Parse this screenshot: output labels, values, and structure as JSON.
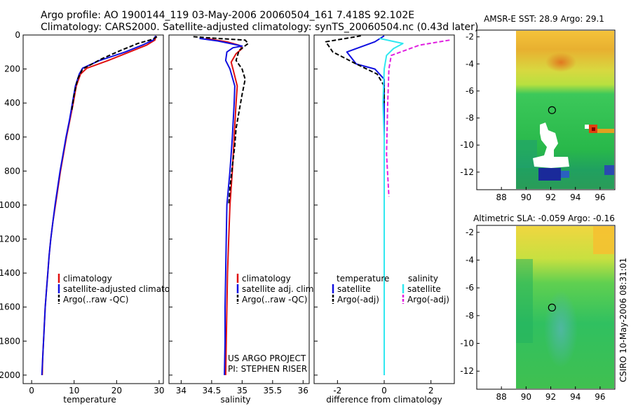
{
  "header": {
    "line1": "Argo profile: AO 1900144_119 03-May-2006 20060504_161 7.418S 92.102E",
    "line2": "Climatology: CARS2000. Satellite-adjusted climatology: synTS_20060504.nc (0.43d later)"
  },
  "side_stamp": "CSIRO 10-May-2006 08:31:01",
  "project": {
    "line1": "US ARGO PROJECT",
    "line2": "PI: STEPHEN RISER"
  },
  "colors": {
    "climatology": "#e01010",
    "satellite": "#1010e0",
    "argo": "#000000",
    "cyan": "#30e8f0",
    "magenta": "#e020e0"
  },
  "chart_data": [
    {
      "id": "temperature",
      "type": "line",
      "xlabel": "temperature",
      "ylabel": "",
      "xlim": [
        -2,
        31
      ],
      "ylim": [
        0,
        2050
      ],
      "xticks": [
        0,
        10,
        20,
        30
      ],
      "yticks": [
        0,
        200,
        400,
        600,
        800,
        1000,
        1200,
        1400,
        1600,
        1800,
        2000
      ],
      "legend": [
        "climatology",
        "satellite-adjusted climatology",
        "Argo(..raw -QC)"
      ],
      "series": [
        {
          "name": "climatology",
          "style": "solid",
          "color": "#e01010",
          "points": [
            [
              29.3,
              5
            ],
            [
              29,
              30
            ],
            [
              27,
              60
            ],
            [
              23,
              100
            ],
            [
              18,
              150
            ],
            [
              13,
              195
            ],
            [
              11.5,
              230
            ],
            [
              10.5,
              300
            ],
            [
              9.8,
              400
            ],
            [
              9,
              500
            ],
            [
              8.2,
              600
            ],
            [
              7.5,
              700
            ],
            [
              6.8,
              800
            ],
            [
              6.2,
              900
            ],
            [
              5.6,
              1000
            ],
            [
              5,
              1100
            ],
            [
              4.5,
              1200
            ],
            [
              4.1,
              1300
            ],
            [
              3.8,
              1400
            ],
            [
              3.5,
              1500
            ],
            [
              3.2,
              1600
            ],
            [
              3,
              1700
            ],
            [
              2.8,
              1800
            ],
            [
              2.6,
              1900
            ],
            [
              2.5,
              2000
            ]
          ]
        },
        {
          "name": "satellite-adjusted climatology",
          "style": "solid",
          "color": "#1010e0",
          "points": [
            [
              29.2,
              5
            ],
            [
              28.6,
              30
            ],
            [
              26,
              60
            ],
            [
              22,
              100
            ],
            [
              16,
              150
            ],
            [
              12,
              195
            ],
            [
              11.2,
              230
            ],
            [
              10.3,
              300
            ],
            [
              9.6,
              400
            ],
            [
              8.9,
              500
            ],
            [
              8.1,
              600
            ],
            [
              7.4,
              700
            ],
            [
              6.7,
              800
            ],
            [
              6.1,
              900
            ],
            [
              5.5,
              1000
            ],
            [
              5,
              1100
            ],
            [
              4.5,
              1200
            ],
            [
              4.1,
              1300
            ],
            [
              3.8,
              1400
            ],
            [
              3.5,
              1500
            ],
            [
              3.2,
              1600
            ],
            [
              3,
              1700
            ],
            [
              2.8,
              1800
            ],
            [
              2.6,
              1900
            ],
            [
              2.4,
              2000
            ]
          ]
        },
        {
          "name": "Argo(..raw -QC)",
          "style": "dashed",
          "color": "#000000",
          "points": [
            [
              29.5,
              10
            ],
            [
              28.5,
              25
            ],
            [
              25,
              50
            ],
            [
              21,
              90
            ],
            [
              16.5,
              140
            ],
            [
              12,
              200
            ],
            [
              10.8,
              260
            ],
            [
              10,
              350
            ],
            [
              9.4,
              450
            ]
          ]
        }
      ]
    },
    {
      "id": "salinity",
      "type": "line",
      "xlabel": "salinity",
      "ylabel": "",
      "xlim": [
        33.8,
        36.1
      ],
      "ylim": [
        0,
        2050
      ],
      "xticks": [
        34,
        34.5,
        35,
        35.5,
        36
      ],
      "xticklabels": [
        "34",
        "34.5",
        "35",
        "35.5",
        "36"
      ],
      "yticks": [
        0,
        200,
        400,
        600,
        800,
        1000,
        1200,
        1400,
        1600,
        1800,
        2000
      ],
      "legend": [
        "climatology",
        "satellite adj. clim.",
        "Argo(..raw -QC)"
      ],
      "series": [
        {
          "name": "climatology",
          "style": "solid",
          "color": "#e01010",
          "points": [
            [
              34.4,
              20
            ],
            [
              34.75,
              40
            ],
            [
              34.95,
              60
            ],
            [
              35,
              80
            ],
            [
              34.9,
              110
            ],
            [
              34.82,
              160
            ],
            [
              34.85,
              200
            ],
            [
              34.92,
              300
            ],
            [
              34.9,
              400
            ],
            [
              34.87,
              600
            ],
            [
              34.84,
              800
            ],
            [
              34.8,
              1000
            ],
            [
              34.78,
              1200
            ],
            [
              34.76,
              1400
            ],
            [
              34.75,
              1600
            ],
            [
              34.74,
              1800
            ],
            [
              34.73,
              2000
            ]
          ]
        },
        {
          "name": "satellite adj. clim.",
          "style": "solid",
          "color": "#1010e0",
          "points": [
            [
              34.3,
              20
            ],
            [
              34.6,
              35
            ],
            [
              34.8,
              50
            ],
            [
              35,
              65
            ],
            [
              34.85,
              75
            ],
            [
              34.75,
              100
            ],
            [
              34.73,
              150
            ],
            [
              34.8,
              200
            ],
            [
              34.88,
              300
            ],
            [
              34.87,
              400
            ],
            [
              34.84,
              600
            ],
            [
              34.8,
              800
            ],
            [
              34.75,
              1000
            ],
            [
              34.74,
              1200
            ],
            [
              34.73,
              1400
            ],
            [
              34.72,
              1600
            ],
            [
              34.72,
              1800
            ],
            [
              34.71,
              2000
            ]
          ]
        },
        {
          "name": "Argo(..raw -QC)",
          "style": "dashed",
          "color": "#000000",
          "points": [
            [
              34.2,
              10
            ],
            [
              34.6,
              20
            ],
            [
              35.05,
              30
            ],
            [
              35.1,
              50
            ],
            [
              34.95,
              90
            ],
            [
              34.9,
              150
            ],
            [
              35.0,
              200
            ],
            [
              35.05,
              260
            ],
            [
              35.0,
              350
            ],
            [
              34.95,
              450
            ],
            [
              34.9,
              550
            ],
            [
              34.88,
              650
            ],
            [
              34.83,
              800
            ],
            [
              34.8,
              900
            ],
            [
              34.78,
              1000
            ]
          ]
        }
      ]
    },
    {
      "id": "difference",
      "type": "line",
      "xlabel": "difference from climatology",
      "ylabel": "",
      "xlim": [
        -3,
        3
      ],
      "ylim": [
        0,
        2050
      ],
      "xticks": [
        -2,
        0,
        2
      ],
      "yticks": [
        0,
        200,
        400,
        600,
        800,
        1000,
        1200,
        1400,
        1600,
        1800,
        2000
      ],
      "legend_headers": [
        "temperature",
        "salinity"
      ],
      "legend": [
        "satellite",
        "Argo(-adj)",
        "satellite",
        "Argo(-adj)"
      ],
      "series": [
        {
          "name": "temperature satellite",
          "style": "solid",
          "color": "#1010e0",
          "points": [
            [
              0,
              5
            ],
            [
              -0.4,
              40
            ],
            [
              -1.6,
              100
            ],
            [
              -1.2,
              170
            ],
            [
              -0.4,
              200
            ],
            [
              0,
              260
            ],
            [
              0,
              400
            ],
            [
              0,
              2000
            ]
          ]
        },
        {
          "name": "temperature Argo(-adj)",
          "style": "dashed",
          "color": "#000000",
          "points": [
            [
              -1,
              5
            ],
            [
              -2.5,
              40
            ],
            [
              -2.2,
              100
            ],
            [
              -1.2,
              170
            ],
            [
              -0.3,
              230
            ],
            [
              0,
              300
            ],
            [
              0,
              400
            ]
          ]
        },
        {
          "name": "salinity satellite",
          "style": "solid",
          "color": "#30e8f0",
          "points": [
            [
              -0.2,
              20
            ],
            [
              0.8,
              50
            ],
            [
              0.4,
              80
            ],
            [
              0.1,
              120
            ],
            [
              0,
              200
            ],
            [
              -0.05,
              400
            ],
            [
              0,
              600
            ],
            [
              0,
              1000
            ],
            [
              0,
              1500
            ],
            [
              0,
              2000
            ]
          ]
        },
        {
          "name": "salinity Argo(-adj)",
          "style": "dashed",
          "color": "#e020e0",
          "points": [
            [
              2.8,
              30
            ],
            [
              1.5,
              60
            ],
            [
              0.3,
              120
            ],
            [
              0.2,
              200
            ],
            [
              0.15,
              400
            ],
            [
              0.1,
              700
            ],
            [
              0.2,
              950
            ]
          ]
        }
      ]
    },
    {
      "id": "sst_map",
      "type": "heatmap",
      "title": "AMSR-E SST: 28.9 Argo: 29.1",
      "xlim": [
        86,
        97.2
      ],
      "ylim": [
        -13.3,
        -1.5
      ],
      "xticks": [
        88,
        90,
        92,
        94,
        96
      ],
      "yticks": [
        -2,
        -4,
        -6,
        -8,
        -10,
        -12
      ],
      "data_lon_start": 90,
      "profile": {
        "lon": 92.102,
        "lat": -7.418
      }
    },
    {
      "id": "sla_map",
      "type": "heatmap",
      "title": "Altimetric SLA: -0.059 Argo: -0.16",
      "xlim": [
        86,
        97.2
      ],
      "ylim": [
        -13.3,
        -1.5
      ],
      "xticks": [
        88,
        90,
        92,
        94,
        96
      ],
      "yticks": [
        -2,
        -4,
        -6,
        -8,
        -10,
        -12
      ],
      "data_lon_start": 90,
      "profile": {
        "lon": 92.102,
        "lat": -7.418
      }
    }
  ]
}
